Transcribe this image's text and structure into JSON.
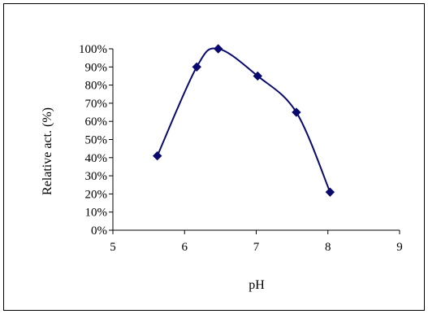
{
  "chart_data": {
    "type": "line",
    "title": "",
    "xlabel": "pH",
    "ylabel": "Relative act. (%)",
    "xlim": [
      5,
      9
    ],
    "ylim": [
      0,
      100
    ],
    "x_ticks": [
      5,
      6,
      7,
      8,
      9
    ],
    "x_tick_labels": [
      "5",
      "6",
      "7",
      "8",
      "9"
    ],
    "y_ticks": [
      0,
      10,
      20,
      30,
      40,
      50,
      60,
      70,
      80,
      90,
      100
    ],
    "y_tick_labels": [
      "0%",
      "10%",
      "20%",
      "30%",
      "40%",
      "50%",
      "60%",
      "70%",
      "80%",
      "90%",
      "100%"
    ],
    "grid": false,
    "legend": "none",
    "line_style": "smoothed",
    "marker": "diamond",
    "series": [
      {
        "color": "#0a0a6e",
        "x": [
          5.62,
          6.17,
          6.47,
          7.02,
          7.56,
          8.03
        ],
        "y": [
          41,
          90,
          100,
          85,
          65,
          21
        ]
      }
    ]
  }
}
